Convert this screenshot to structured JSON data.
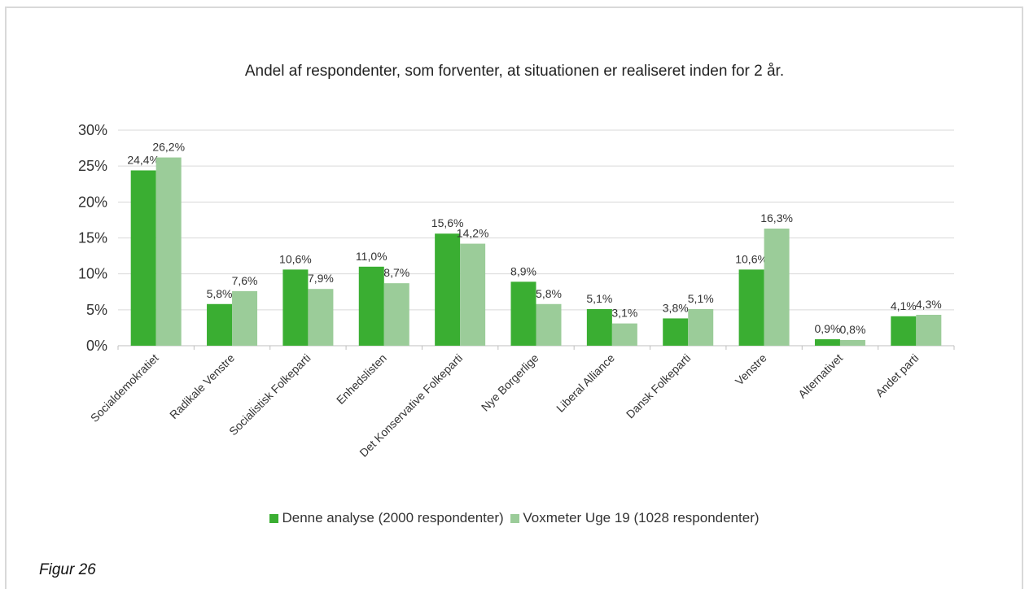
{
  "chart_data": {
    "type": "bar",
    "title": "Andel af respondenter, som forventer, at situationen er realiseret inden for 2 år.",
    "categories": [
      "Socialdemokratiet",
      "Radikale Venstre",
      "Socialistisk Folkeparti",
      "Enhedslisten",
      "Det Konservative Folkeparti",
      "Nye Borgerlige",
      "Liberal Alliance",
      "Dansk Folkeparti",
      "Venstre",
      "Alternativet",
      "Andet parti"
    ],
    "series": [
      {
        "name": "Denne analyse (2000 respondenter)",
        "color": "#3aae32",
        "values": [
          24.4,
          5.8,
          10.6,
          11.0,
          15.6,
          8.9,
          5.1,
          3.8,
          10.6,
          0.9,
          4.1
        ],
        "labels": [
          "24,4%",
          "5,8%",
          "10,6%",
          "11,0%",
          "15,6%",
          "8,9%",
          "5,1%",
          "3,8%",
          "10,6%",
          "0,9%",
          "4,1%"
        ]
      },
      {
        "name": "Voxmeter Uge 19 (1028 respondenter)",
        "color": "#9bcc99",
        "values": [
          26.2,
          7.6,
          7.9,
          8.7,
          14.2,
          5.8,
          3.1,
          5.1,
          16.3,
          0.8,
          4.3
        ],
        "labels": [
          "26,2%",
          "7,6%",
          "7,9%",
          "8,7%",
          "14,2%",
          "5,8%",
          "3,1%",
          "5,1%",
          "16,3%",
          "0,8%",
          "4,3%"
        ]
      }
    ],
    "yticks": [
      "0%",
      "5%",
      "10%",
      "15%",
      "20%",
      "25%",
      "30%"
    ],
    "ylim": [
      0,
      30
    ],
    "grid": true,
    "legend_position": "bottom"
  },
  "caption": "Figur 26"
}
